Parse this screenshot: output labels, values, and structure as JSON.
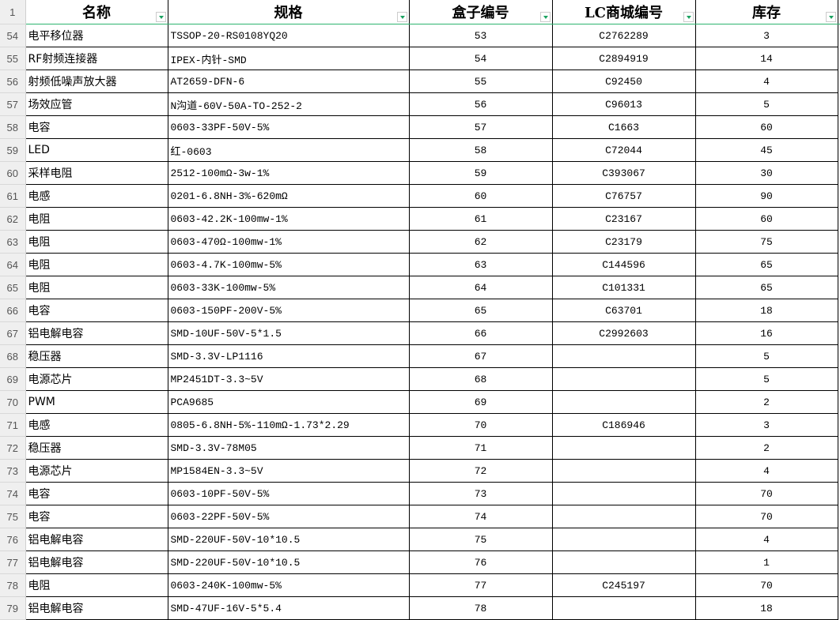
{
  "header": {
    "row_number": "1",
    "columns": [
      "名称",
      "规格",
      "盒子编号",
      "LC商城编号",
      "库存"
    ]
  },
  "rows": [
    {
      "n": "54",
      "name": "电平移位器",
      "spec": "TSSOP-20-RS0108YQ20",
      "box": "53",
      "lc": "C2762289",
      "stock": "3"
    },
    {
      "n": "55",
      "name": "RF射频连接器",
      "spec": "IPEX-内针-SMD",
      "box": "54",
      "lc": "C2894919",
      "stock": "14"
    },
    {
      "n": "56",
      "name": "射频低噪声放大器",
      "spec": "AT2659-DFN-6",
      "box": "55",
      "lc": "C92450",
      "stock": "4"
    },
    {
      "n": "57",
      "name": "场效应管",
      "spec": "N沟道-60V-50A-TO-252-2",
      "box": "56",
      "lc": "C96013",
      "stock": "5"
    },
    {
      "n": "58",
      "name": "电容",
      "spec": "0603-33PF-50V-5%",
      "box": "57",
      "lc": "C1663",
      "stock": "60"
    },
    {
      "n": "59",
      "name": "LED",
      "spec": "红-0603",
      "box": "58",
      "lc": "C72044",
      "stock": "45"
    },
    {
      "n": "60",
      "name": "采样电阻",
      "spec": "2512-100mΩ-3w-1%",
      "box": "59",
      "lc": "C393067",
      "stock": "30"
    },
    {
      "n": "61",
      "name": "电感",
      "spec": "0201-6.8NH-3%-620mΩ",
      "box": "60",
      "lc": "C76757",
      "stock": "90"
    },
    {
      "n": "62",
      "name": "电阻",
      "spec": "0603-42.2K-100mw-1%",
      "box": "61",
      "lc": "C23167",
      "stock": "60"
    },
    {
      "n": "63",
      "name": "电阻",
      "spec": "0603-470Ω-100mw-1%",
      "box": "62",
      "lc": "C23179",
      "stock": "75"
    },
    {
      "n": "64",
      "name": "电阻",
      "spec": "0603-4.7K-100mw-5%",
      "box": "63",
      "lc": "C144596",
      "stock": "65"
    },
    {
      "n": "65",
      "name": "电阻",
      "spec": "0603-33K-100mw-5%",
      "box": "64",
      "lc": "C101331",
      "stock": "65"
    },
    {
      "n": "66",
      "name": "电容",
      "spec": "0603-150PF-200V-5%",
      "box": "65",
      "lc": "C63701",
      "stock": "18"
    },
    {
      "n": "67",
      "name": "铝电解电容",
      "spec": "SMD-10UF-50V-5*1.5",
      "box": "66",
      "lc": "C2992603",
      "stock": "16"
    },
    {
      "n": "68",
      "name": "稳压器",
      "spec": "SMD-3.3V-LP1116",
      "box": "67",
      "lc": "",
      "stock": "5"
    },
    {
      "n": "69",
      "name": "电源芯片",
      "spec": "MP2451DT-3.3~5V",
      "box": "68",
      "lc": "",
      "stock": "5"
    },
    {
      "n": "70",
      "name": "PWM",
      "spec": "PCA9685",
      "box": "69",
      "lc": "",
      "stock": "2"
    },
    {
      "n": "71",
      "name": "电感",
      "spec": "0805-6.8NH-5%-110mΩ-1.73*2.29",
      "box": "70",
      "lc": "C186946",
      "stock": "3"
    },
    {
      "n": "72",
      "name": "稳压器",
      "spec": "SMD-3.3V-78M05",
      "box": "71",
      "lc": "",
      "stock": "2"
    },
    {
      "n": "73",
      "name": "电源芯片",
      "spec": "MP1584EN-3.3~5V",
      "box": "72",
      "lc": "",
      "stock": "4"
    },
    {
      "n": "74",
      "name": "电容",
      "spec": "0603-10PF-50V-5%",
      "box": "73",
      "lc": "",
      "stock": "70"
    },
    {
      "n": "75",
      "name": "电容",
      "spec": "0603-22PF-50V-5%",
      "box": "74",
      "lc": "",
      "stock": "70"
    },
    {
      "n": "76",
      "name": "铝电解电容",
      "spec": "SMD-220UF-50V-10*10.5",
      "box": "75",
      "lc": "",
      "stock": "4"
    },
    {
      "n": "77",
      "name": "铝电解电容",
      "spec": "SMD-220UF-50V-10*10.5",
      "box": "76",
      "lc": "",
      "stock": "1"
    },
    {
      "n": "78",
      "name": "电阻",
      "spec": "0603-240K-100mw-5%",
      "box": "77",
      "lc": "C245197",
      "stock": "70"
    },
    {
      "n": "79",
      "name": "铝电解电容",
      "spec": "SMD-47UF-16V-5*5.4",
      "box": "78",
      "lc": "",
      "stock": "18"
    }
  ]
}
